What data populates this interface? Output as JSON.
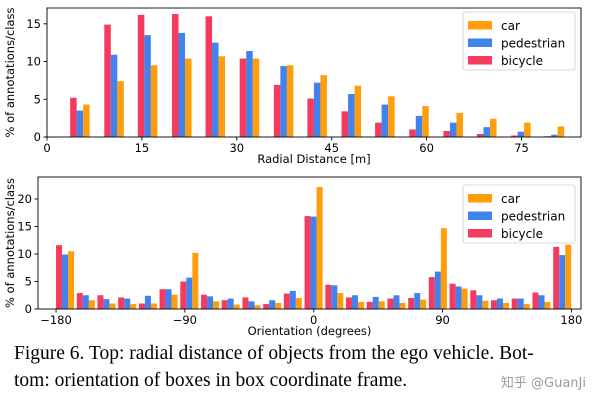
{
  "colors": {
    "car": "#ff9e0c",
    "pedestrian": "#4182ee",
    "bicycle": "#f53a5f"
  },
  "chart_data": [
    {
      "type": "bar",
      "xlabel": "Radial Distance [m]",
      "ylabel": "% of annotations/class",
      "xlim": [
        0,
        84.4
      ],
      "ylim": [
        0,
        17.1
      ],
      "xticks": [
        0,
        15,
        30,
        45,
        60,
        75
      ],
      "yticks": [
        0,
        5,
        10,
        15
      ],
      "grid": false,
      "legend": "top-right",
      "legend_order": [
        "car",
        "pedestrian",
        "bicycle"
      ],
      "x": [
        5.2,
        10.6,
        15.9,
        21.3,
        26.6,
        32.0,
        37.4,
        42.7,
        48.1,
        53.4,
        58.8,
        64.2,
        69.5,
        74.9,
        80.2
      ],
      "series": [
        {
          "name": "bicycle",
          "values": [
            5.2,
            14.9,
            16.2,
            16.3,
            16.0,
            10.4,
            6.9,
            5.1,
            3.4,
            1.9,
            1.0,
            0.8,
            0.4,
            0.2,
            0.1
          ]
        },
        {
          "name": "pedestrian",
          "values": [
            3.5,
            10.9,
            13.5,
            13.8,
            12.5,
            11.4,
            9.4,
            7.2,
            5.7,
            4.3,
            2.8,
            1.9,
            1.3,
            0.7,
            0.3
          ]
        },
        {
          "name": "car",
          "values": [
            4.3,
            7.4,
            9.5,
            10.4,
            10.7,
            10.4,
            9.5,
            8.2,
            6.8,
            5.4,
            4.1,
            3.2,
            2.4,
            1.9,
            1.4
          ]
        }
      ]
    },
    {
      "type": "bar",
      "xlabel": "Orientation (degrees)",
      "ylabel": "% of annotations/class",
      "xlim": [
        -192.6,
        186.7
      ],
      "ylim": [
        0,
        24
      ],
      "xticks": [
        -180,
        -90,
        0,
        90,
        180
      ],
      "yticks": [
        0,
        5,
        10,
        15,
        20
      ],
      "grid": false,
      "legend": "top-right",
      "legend_order": [
        "car",
        "pedestrian",
        "bicycle"
      ],
      "x": [
        -173.7,
        -159.2,
        -144.8,
        -130.3,
        -115.8,
        -101.4,
        -86.9,
        -72.4,
        -58.0,
        -43.5,
        -29.0,
        -14.6,
        -0.1,
        14.4,
        28.8,
        43.3,
        57.8,
        72.3,
        86.7,
        101.2,
        115.7,
        130.1,
        144.6,
        159.1,
        173.6
      ],
      "series": [
        {
          "name": "bicycle",
          "values": [
            11.6,
            2.9,
            2.5,
            2.1,
            1.0,
            3.6,
            5.0,
            2.6,
            1.6,
            2.1,
            0.9,
            2.8,
            16.9,
            4.4,
            2.1,
            1.3,
            1.9,
            2.0,
            5.8,
            4.6,
            3.4,
            1.6,
            1.9,
            3.0,
            11.3
          ]
        },
        {
          "name": "pedestrian",
          "values": [
            9.9,
            2.5,
            1.8,
            1.9,
            2.4,
            3.6,
            5.7,
            2.3,
            1.9,
            1.4,
            1.6,
            3.3,
            16.8,
            4.3,
            2.5,
            2.2,
            2.5,
            2.9,
            6.8,
            4.1,
            2.5,
            1.9,
            1.9,
            2.5,
            9.8
          ]
        },
        {
          "name": "car",
          "values": [
            10.5,
            1.6,
            1.0,
            0.9,
            1.0,
            2.6,
            10.2,
            1.4,
            0.8,
            0.7,
            1.1,
            2.0,
            22.2,
            2.9,
            1.3,
            1.4,
            1.1,
            1.7,
            14.7,
            3.7,
            1.5,
            1.1,
            0.9,
            1.3,
            11.7
          ]
        }
      ]
    }
  ],
  "caption": {
    "line1": "Figure 6. Top: radial distance of objects from the ego vehicle. Bot-",
    "line2": "tom: orientation of boxes in box coordinate frame."
  },
  "watermark": "知乎 @GuanJi"
}
